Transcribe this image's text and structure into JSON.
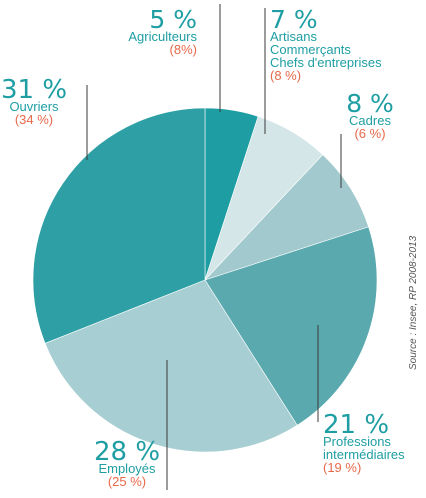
{
  "chart_data": {
    "type": "pie",
    "title": "",
    "start_angle_deg": 0,
    "direction": "clockwise",
    "slices": [
      {
        "label": [
          "Agriculteurs"
        ],
        "value": 5,
        "value_text": "5 %",
        "previous_text": "(8%)",
        "color": "#1e9ea3"
      },
      {
        "label": [
          "Artisans",
          "Commerçants",
          "Chefs d'entreprises"
        ],
        "value": 7,
        "value_text": "7 %",
        "previous_text": "(8 %)",
        "color": "#d4e6e8"
      },
      {
        "label": [
          "Cadres"
        ],
        "value": 8,
        "value_text": "8 %",
        "previous_text": "(6 %)",
        "color": "#a2c9cd"
      },
      {
        "label": [
          "Professions",
          "intermédiaires"
        ],
        "value": 21,
        "value_text": "21 %",
        "previous_text": "(19 %)",
        "color": "#5aa9ae"
      },
      {
        "label": [
          "Employés"
        ],
        "value": 28,
        "value_text": "28 %",
        "previous_text": "(25 %)",
        "color": "#a7ced2"
      },
      {
        "label": [
          "Ouvriers"
        ],
        "value": 31,
        "value_text": "31 %",
        "previous_text": "(34 %)",
        "color": "#2ea0a5"
      }
    ],
    "source": "Source : Insee, RP 2008-2013",
    "colors": {
      "percent_text": "#1e9ea3",
      "label_text": "#1e9ea3",
      "previous_text": "#e8694a",
      "leader_line": "#3a3a3a",
      "source_text": "#555555"
    }
  }
}
